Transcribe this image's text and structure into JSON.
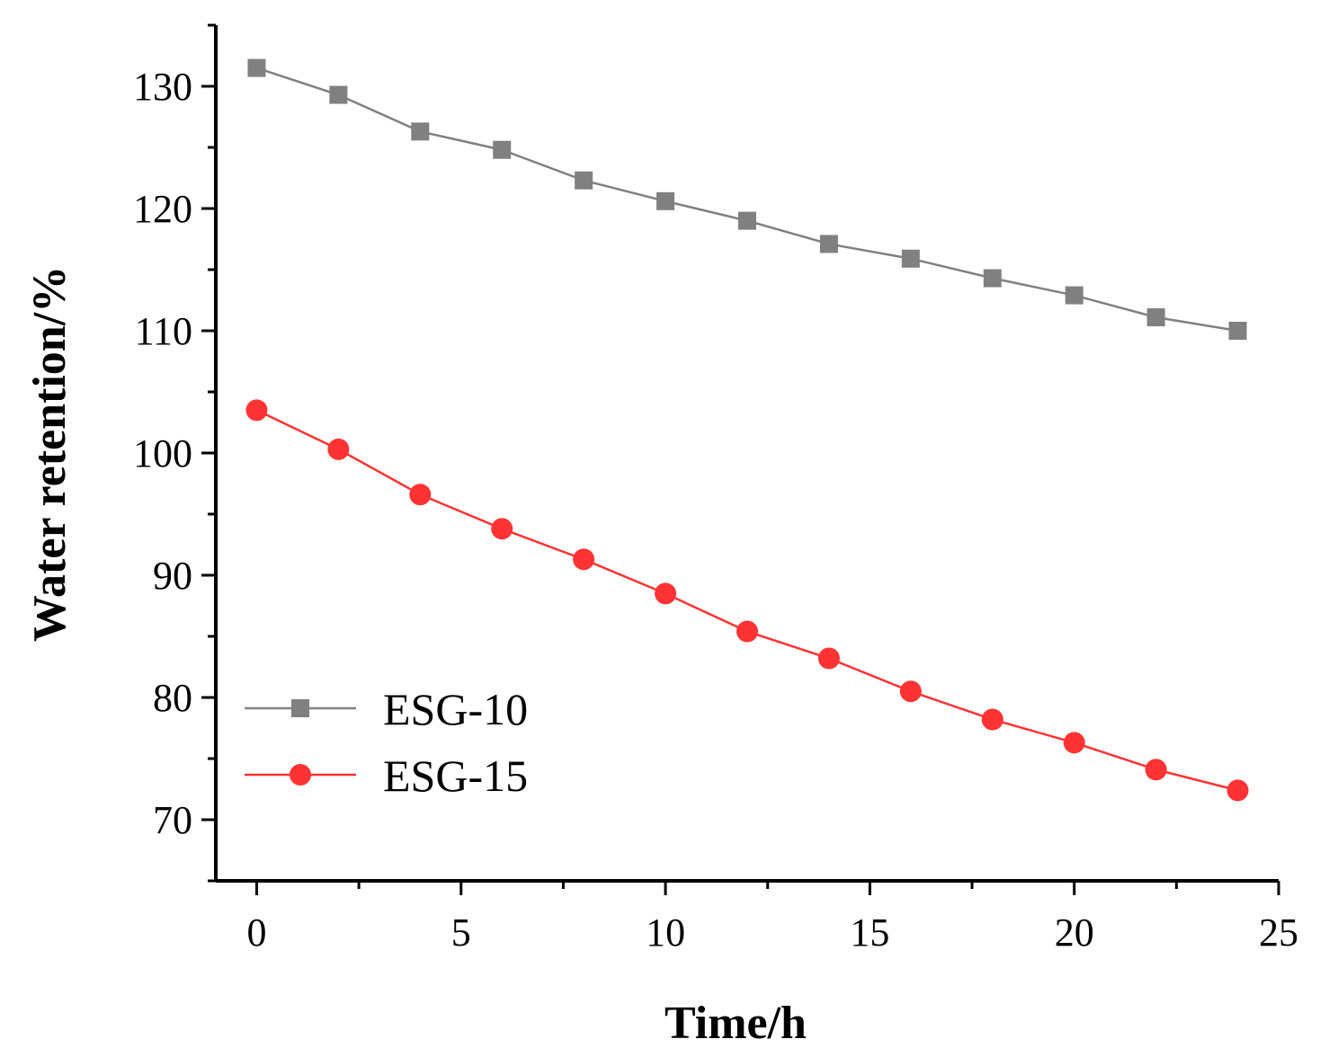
{
  "chart_data": {
    "type": "line",
    "title": "",
    "xlabel": "Time/h",
    "ylabel": "Water retention/%",
    "xlim": [
      -1,
      25
    ],
    "ylim": [
      65,
      135
    ],
    "xticks": [
      0,
      5,
      10,
      15,
      20,
      25
    ],
    "yticks": [
      70,
      80,
      90,
      100,
      110,
      120,
      130
    ],
    "grid": false,
    "legend_position": "bottom-left",
    "x": [
      0,
      2,
      4,
      6,
      8,
      10,
      12,
      14,
      16,
      18,
      20,
      22,
      24
    ],
    "series": [
      {
        "name": "ESG-10",
        "color": "#808080",
        "marker": "square",
        "values": [
          131.5,
          129.3,
          126.3,
          124.8,
          122.3,
          120.6,
          119.0,
          117.1,
          115.9,
          114.3,
          112.9,
          111.1,
          110.0
        ]
      },
      {
        "name": "ESG-15",
        "color": "#ff3333",
        "marker": "circle",
        "values": [
          103.5,
          100.3,
          96.6,
          93.8,
          91.3,
          88.5,
          85.4,
          83.2,
          80.5,
          78.2,
          76.3,
          74.1,
          72.4
        ]
      }
    ]
  }
}
